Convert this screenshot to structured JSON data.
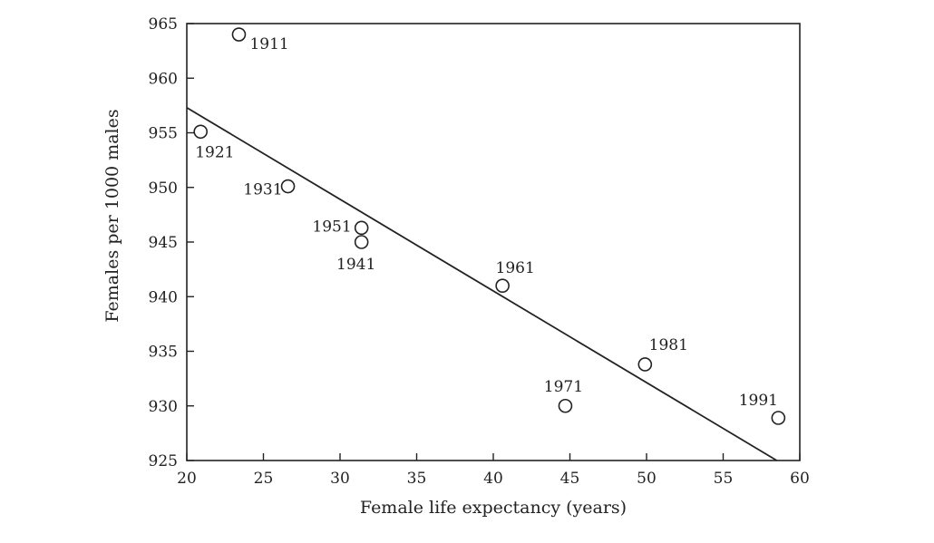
{
  "chart_data": {
    "type": "scatter",
    "xlabel": "Female life expectancy (years)",
    "ylabel": "Females per 1000 males",
    "xlim": [
      20,
      60
    ],
    "ylim": [
      925,
      965
    ],
    "xticks": [
      "20",
      "25",
      "30",
      "35",
      "40",
      "45",
      "50",
      "55",
      "60"
    ],
    "yticks": [
      "925",
      "930",
      "935",
      "940",
      "945",
      "950",
      "955",
      "960",
      "965"
    ],
    "grid": false,
    "points": [
      {
        "label": "1911",
        "x": 23.4,
        "y": 964.0
      },
      {
        "label": "1921",
        "x": 20.9,
        "y": 955.1
      },
      {
        "label": "1931",
        "x": 26.6,
        "y": 950.1
      },
      {
        "label": "1941",
        "x": 31.4,
        "y": 945.0
      },
      {
        "label": "1951",
        "x": 31.4,
        "y": 946.3
      },
      {
        "label": "1961",
        "x": 40.6,
        "y": 941.0
      },
      {
        "label": "1971",
        "x": 44.7,
        "y": 930.0
      },
      {
        "label": "1981",
        "x": 49.9,
        "y": 933.8
      },
      {
        "label": "1991",
        "x": 58.6,
        "y": 928.9
      }
    ],
    "trend_line": {
      "x": [
        20,
        58.5
      ],
      "y": [
        957.3,
        925.0
      ]
    }
  }
}
